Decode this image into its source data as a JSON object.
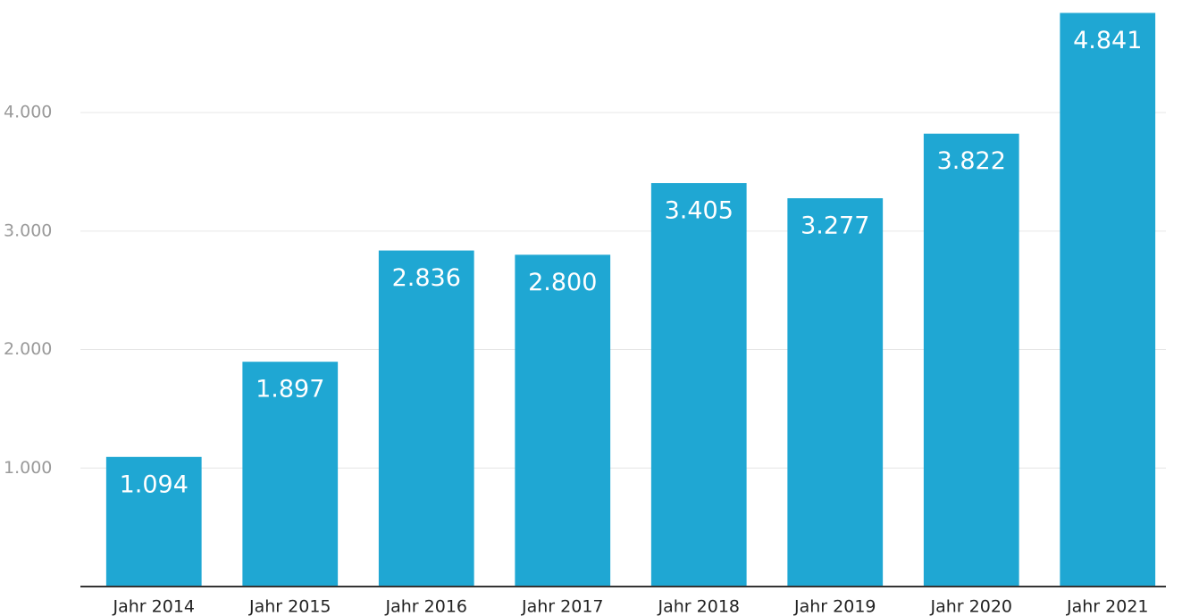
{
  "chart_data": {
    "type": "bar",
    "categories": [
      "Jahr 2014",
      "Jahr 2015",
      "Jahr 2016",
      "Jahr 2017",
      "Jahr 2018",
      "Jahr 2019",
      "Jahr 2020",
      "Jahr 2021"
    ],
    "values": [
      1094,
      1897,
      2836,
      2800,
      3405,
      3277,
      3822,
      4841
    ],
    "value_labels": [
      "1.094",
      "1.897",
      "2.836",
      "2.800",
      "3.405",
      "3.277",
      "3.822",
      "4.841"
    ],
    "color": "#1fa7d3",
    "ylim": [
      0,
      4950
    ],
    "yticks": [
      {
        "value": 1000,
        "label": "1.000"
      },
      {
        "value": 2000,
        "label": "2.000"
      },
      {
        "value": 3000,
        "label": "3.000"
      },
      {
        "value": 4000,
        "label": "4.000"
      }
    ],
    "grid": true
  }
}
